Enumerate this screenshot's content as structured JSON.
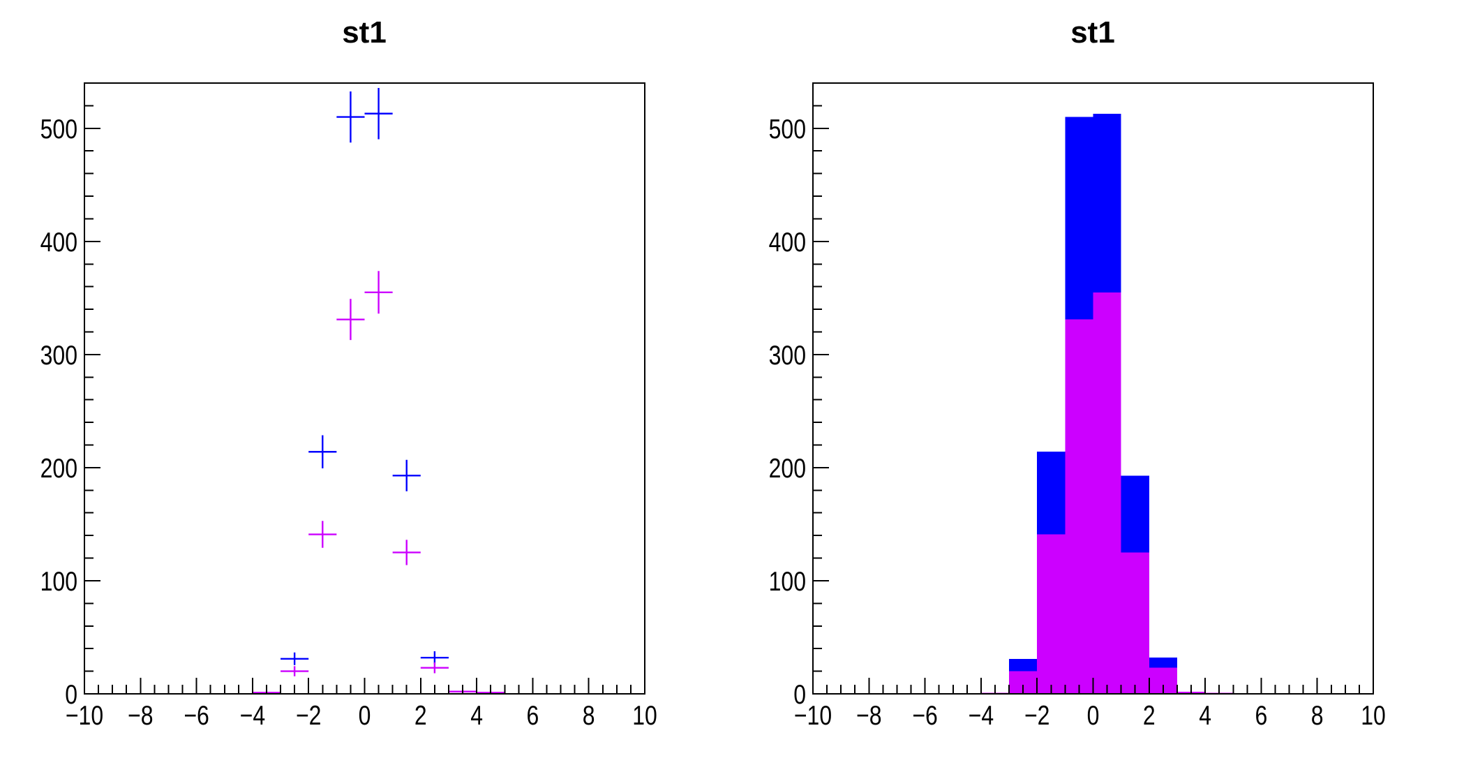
{
  "canvas": {
    "background": "#ffffff",
    "frame_color": "#000000"
  },
  "chart_data": [
    {
      "panel": "left",
      "type": "scatter",
      "style": "root-error-cross-histogram",
      "title": "st1",
      "xlabel": "",
      "ylabel": "",
      "xlim": [
        -10,
        10
      ],
      "ylim": [
        0,
        540
      ],
      "grid": false,
      "legend": null,
      "bin_width": 1,
      "error_bars": "sqrt(N)",
      "x_major_tick_step": 2,
      "x_minor_tick_step": 0.5,
      "y_major_tick_step": 100,
      "y_minor_tick_step": 20,
      "x_tick_labels": [
        "−10",
        "−8",
        "−6",
        "−4",
        "−2",
        "0",
        "2",
        "4",
        "6",
        "8",
        "10"
      ],
      "y_tick_labels": [
        "0",
        "100",
        "200",
        "300",
        "400",
        "500"
      ],
      "series": [
        {
          "name": "blue_histogram",
          "color": "#0000ff",
          "bin_centers": [
            -2.5,
            -1.5,
            -0.5,
            0.5,
            1.5,
            2.5
          ],
          "values": [
            31,
            214,
            510,
            513,
            193,
            32
          ]
        },
        {
          "name": "violet_histogram",
          "color": "#cc00ff",
          "bin_centers": [
            -3.5,
            -2.5,
            -1.5,
            -0.5,
            0.5,
            1.5,
            2.5,
            3.5,
            4.5
          ],
          "values": [
            1,
            20,
            141,
            331,
            355,
            125,
            23,
            2,
            1
          ]
        }
      ]
    },
    {
      "panel": "right",
      "type": "bar",
      "style": "root-filled-histogram-overlay",
      "title": "st1",
      "xlabel": "",
      "ylabel": "",
      "xlim": [
        -10,
        10
      ],
      "ylim": [
        0,
        540
      ],
      "grid": false,
      "legend": null,
      "bin_width": 1,
      "x_major_tick_step": 2,
      "x_minor_tick_step": 0.5,
      "y_major_tick_step": 100,
      "y_minor_tick_step": 20,
      "x_tick_labels": [
        "−10",
        "−8",
        "−6",
        "−4",
        "−2",
        "0",
        "2",
        "4",
        "6",
        "8",
        "10"
      ],
      "y_tick_labels": [
        "0",
        "100",
        "200",
        "300",
        "400",
        "500"
      ],
      "series": [
        {
          "name": "blue_histogram",
          "color": "#0000ff",
          "bin_centers": [
            -2.5,
            -1.5,
            -0.5,
            0.5,
            1.5,
            2.5
          ],
          "values": [
            31,
            214,
            510,
            513,
            193,
            32
          ]
        },
        {
          "name": "violet_histogram",
          "color": "#cc00ff",
          "bin_centers": [
            -3.5,
            -2.5,
            -1.5,
            -0.5,
            0.5,
            1.5,
            2.5,
            3.5,
            4.5
          ],
          "values": [
            1,
            20,
            141,
            331,
            355,
            125,
            23,
            2,
            1
          ]
        }
      ]
    }
  ]
}
